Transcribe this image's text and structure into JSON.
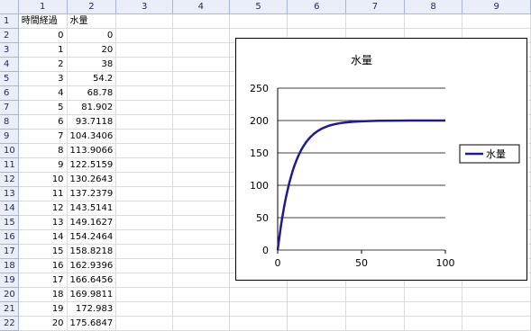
{
  "sheet": {
    "column_headers": [
      "1",
      "2",
      "3",
      "4",
      "5",
      "6",
      "7",
      "8",
      "9"
    ],
    "row_headers": [
      "1",
      "2",
      "3",
      "4",
      "5",
      "6",
      "7",
      "8",
      "9",
      "10",
      "11",
      "12",
      "13",
      "14",
      "15",
      "16",
      "17",
      "18",
      "19",
      "20",
      "21",
      "22"
    ],
    "header_row": [
      "時間経過",
      "水量"
    ],
    "data_rows": [
      [
        "0",
        "0"
      ],
      [
        "1",
        "20"
      ],
      [
        "2",
        "38"
      ],
      [
        "3",
        "54.2"
      ],
      [
        "4",
        "68.78"
      ],
      [
        "5",
        "81.902"
      ],
      [
        "6",
        "93.7118"
      ],
      [
        "7",
        "104.3406"
      ],
      [
        "8",
        "113.9066"
      ],
      [
        "9",
        "122.5159"
      ],
      [
        "10",
        "130.2643"
      ],
      [
        "11",
        "137.2379"
      ],
      [
        "12",
        "143.5141"
      ],
      [
        "13",
        "149.1627"
      ],
      [
        "14",
        "154.2464"
      ],
      [
        "15",
        "158.8218"
      ],
      [
        "16",
        "162.9396"
      ],
      [
        "17",
        "166.6456"
      ],
      [
        "18",
        "169.9811"
      ],
      [
        "19",
        "172.983"
      ],
      [
        "20",
        "175.6847"
      ]
    ]
  },
  "chart_data": {
    "type": "line",
    "title": "水量",
    "xlabel": "",
    "ylabel": "",
    "xlim": [
      0,
      100
    ],
    "ylim": [
      0,
      250
    ],
    "x_ticks": [
      "0",
      "50",
      "100"
    ],
    "y_ticks": [
      "0",
      "50",
      "100",
      "150",
      "200",
      "250"
    ],
    "grid": "horizontal",
    "legend_position": "right",
    "series": [
      {
        "name": "水量",
        "color": "#1c1c8f",
        "x": [
          0,
          1,
          2,
          3,
          4,
          5,
          6,
          7,
          8,
          9,
          10,
          11,
          12,
          13,
          14,
          15,
          16,
          17,
          18,
          19,
          20,
          22,
          24,
          26,
          28,
          30,
          32,
          35,
          38,
          40,
          45,
          50,
          60,
          70,
          80,
          90,
          100
        ],
        "y": [
          0,
          20,
          38,
          54.2,
          68.78,
          81.902,
          93.7118,
          104.3406,
          113.9066,
          122.5159,
          130.2643,
          137.2379,
          143.5141,
          149.1627,
          154.2464,
          158.8218,
          162.9396,
          166.6456,
          169.9811,
          172.983,
          175.6847,
          180.3,
          184.0,
          187.1,
          189.5,
          191.5,
          193.1,
          194.9,
          196.2,
          196.9,
          198.0,
          198.8,
          199.6,
          199.9,
          200,
          200,
          200
        ]
      }
    ]
  }
}
